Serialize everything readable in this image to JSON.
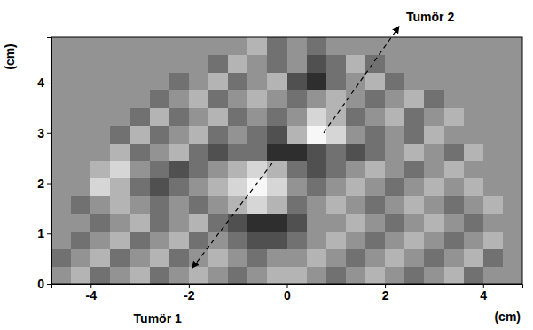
{
  "chart_data": {
    "type": "heatmap",
    "x_label": "(cm)",
    "y_label": "(cm)",
    "xlim": [
      -4.8,
      4.8
    ],
    "ylim": [
      0,
      4.9
    ],
    "xticks": [
      -4,
      -2,
      0,
      2,
      4
    ],
    "yticks": [
      0,
      1,
      2,
      3,
      4
    ],
    "zlim": [
      1,
      7
    ],
    "x": [
      -4.6,
      -4.2,
      -3.8,
      -3.4,
      -3,
      -2.6,
      -2.2,
      -1.8,
      -1.4,
      -1,
      -0.6,
      -0.2,
      0.2,
      0.6,
      1,
      1.4,
      1.8,
      2.2,
      2.6,
      3,
      3.4,
      3.8,
      4.2,
      4.6
    ],
    "y": [
      0.175,
      0.525,
      0.875,
      1.225,
      1.575,
      1.925,
      2.275,
      2.625,
      2.975,
      3.325,
      3.675,
      4.025,
      4.375,
      4.725
    ],
    "values": [
      [
        4,
        5,
        3,
        4,
        5,
        3,
        4,
        5,
        4,
        3,
        4,
        5,
        5,
        4,
        3,
        4,
        5,
        4,
        3,
        4,
        5,
        3,
        4,
        4
      ],
      [
        3,
        4,
        5,
        3,
        4,
        5,
        3,
        4,
        5,
        4,
        3,
        4,
        4,
        5,
        4,
        3,
        4,
        5,
        4,
        3,
        4,
        5,
        3,
        4
      ],
      [
        4,
        3,
        4,
        5,
        3,
        4,
        5,
        3,
        4,
        3,
        2,
        2,
        3,
        4,
        5,
        4,
        3,
        4,
        5,
        4,
        3,
        4,
        5,
        4
      ],
      [
        4,
        4,
        3,
        4,
        5,
        3,
        4,
        5,
        3,
        2,
        1,
        1,
        2,
        4,
        4,
        5,
        4,
        3,
        4,
        5,
        4,
        3,
        4,
        4
      ],
      [
        4,
        3,
        4,
        5,
        4,
        3,
        4,
        3,
        4,
        5,
        6,
        5,
        3,
        4,
        5,
        4,
        3,
        4,
        5,
        4,
        3,
        4,
        5,
        4
      ],
      [
        4,
        4,
        6,
        5,
        3,
        2,
        3,
        4,
        5,
        6,
        7,
        6,
        4,
        3,
        4,
        5,
        4,
        3,
        4,
        5,
        4,
        5,
        4,
        4
      ],
      [
        4,
        4,
        5,
        6,
        4,
        3,
        2,
        3,
        4,
        5,
        6,
        5,
        3,
        2,
        3,
        4,
        5,
        4,
        3,
        4,
        5,
        4,
        4,
        4
      ],
      [
        4,
        4,
        4,
        5,
        3,
        4,
        5,
        3,
        2,
        3,
        3,
        1,
        1,
        2,
        3,
        2,
        3,
        4,
        5,
        4,
        3,
        5,
        4,
        4
      ],
      [
        4,
        4,
        4,
        3,
        5,
        3,
        4,
        5,
        3,
        4,
        3,
        2,
        5,
        7,
        6,
        4,
        3,
        4,
        3,
        5,
        4,
        4,
        4,
        4
      ],
      [
        4,
        4,
        4,
        4,
        3,
        5,
        3,
        4,
        5,
        3,
        4,
        3,
        4,
        6,
        5,
        3,
        4,
        5,
        3,
        4,
        5,
        4,
        4,
        4
      ],
      [
        4,
        4,
        4,
        4,
        4,
        3,
        4,
        5,
        3,
        4,
        5,
        4,
        3,
        4,
        5,
        4,
        3,
        4,
        5,
        3,
        4,
        4,
        4,
        4
      ],
      [
        4,
        4,
        4,
        4,
        4,
        4,
        3,
        4,
        5,
        3,
        4,
        5,
        2,
        1,
        3,
        4,
        5,
        3,
        4,
        4,
        4,
        4,
        4,
        4
      ],
      [
        4,
        4,
        4,
        4,
        4,
        4,
        4,
        4,
        3,
        5,
        4,
        3,
        4,
        2,
        3,
        5,
        3,
        4,
        4,
        4,
        4,
        4,
        4,
        4
      ],
      [
        4,
        4,
        4,
        4,
        4,
        4,
        4,
        4,
        4,
        4,
        5,
        3,
        4,
        3,
        4,
        4,
        4,
        4,
        4,
        4,
        4,
        4,
        4,
        4
      ]
    ],
    "annotations": [
      {
        "text": "Tumör 1",
        "x": -0.7,
        "y": 1.9
      },
      {
        "text": "Tumör 2",
        "x": 0.75,
        "y": 3.0
      }
    ]
  }
}
